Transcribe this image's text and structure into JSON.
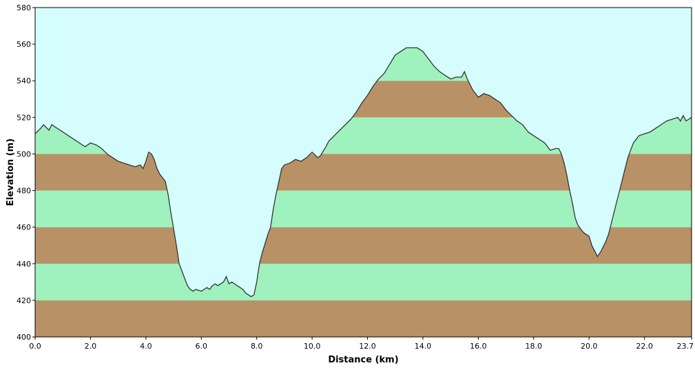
{
  "chart_data": {
    "type": "area",
    "xlabel": "Distance   (km)",
    "ylabel": "Elevation (m)",
    "xlim": [
      0,
      23.7
    ],
    "ylim": [
      400,
      580
    ],
    "x_ticks": [
      0,
      2,
      4,
      6,
      8,
      10,
      12,
      14,
      16,
      18,
      20,
      22,
      23.7
    ],
    "x_tick_labels": [
      "0.0",
      "2.0",
      "4.0",
      "6.0",
      "8.0",
      "10.0",
      "12.0",
      "14.0",
      "16.0",
      "18.0",
      "20.0",
      "22.0",
      "23.7"
    ],
    "y_ticks": [
      400,
      420,
      440,
      460,
      480,
      500,
      520,
      540,
      560,
      580
    ],
    "y_tick_labels": [
      "400",
      "420",
      "440",
      "460",
      "480",
      "500",
      "520",
      "540",
      "560",
      "580"
    ],
    "band_step": 20,
    "grid": false,
    "colors": {
      "sky": "#d6fdfd",
      "band_brown": "#b89266",
      "band_green": "#9ff2bd",
      "profile_line": "#333333",
      "axis": "#000000"
    },
    "x": [
      0,
      0.2,
      0.3,
      0.5,
      0.6,
      0.8,
      1.0,
      1.2,
      1.4,
      1.6,
      1.8,
      2.0,
      2.2,
      2.4,
      2.6,
      2.8,
      3.0,
      3.2,
      3.4,
      3.6,
      3.8,
      3.9,
      4.0,
      4.1,
      4.2,
      4.3,
      4.4,
      4.5,
      4.6,
      4.7,
      4.8,
      4.9,
      5.0,
      5.1,
      5.2,
      5.3,
      5.4,
      5.5,
      5.6,
      5.7,
      5.8,
      6.0,
      6.1,
      6.2,
      6.3,
      6.4,
      6.5,
      6.6,
      6.8,
      6.9,
      7.0,
      7.1,
      7.2,
      7.4,
      7.5,
      7.6,
      7.7,
      7.8,
      7.9,
      8.0,
      8.1,
      8.2,
      8.3,
      8.4,
      8.5,
      8.6,
      8.7,
      8.8,
      8.9,
      9.0,
      9.2,
      9.4,
      9.6,
      9.8,
      10.0,
      10.2,
      10.3,
      10.5,
      10.6,
      10.8,
      11.0,
      11.2,
      11.4,
      11.6,
      11.8,
      12.0,
      12.2,
      12.4,
      12.6,
      12.8,
      13.0,
      13.2,
      13.4,
      13.6,
      13.8,
      14.0,
      14.2,
      14.4,
      14.6,
      14.8,
      15.0,
      15.2,
      15.4,
      15.5,
      15.6,
      15.7,
      15.8,
      16.0,
      16.2,
      16.4,
      16.6,
      16.8,
      17.0,
      17.2,
      17.4,
      17.6,
      17.8,
      18.0,
      18.2,
      18.4,
      18.6,
      18.8,
      18.9,
      19.0,
      19.1,
      19.2,
      19.3,
      19.4,
      19.5,
      19.6,
      19.8,
      20.0,
      20.1,
      20.2,
      20.3,
      20.4,
      20.5,
      20.6,
      20.7,
      20.8,
      20.9,
      21.0,
      21.1,
      21.2,
      21.3,
      21.4,
      21.5,
      21.6,
      21.7,
      21.8,
      22.0,
      22.2,
      22.4,
      22.6,
      22.8,
      23.0,
      23.2,
      23.3,
      23.4,
      23.5,
      23.6,
      23.7
    ],
    "elevation": [
      511,
      514,
      516,
      513,
      516,
      514,
      512,
      510,
      508,
      506,
      504,
      506,
      505,
      503,
      500,
      498,
      496,
      495,
      494,
      493,
      494,
      492,
      496,
      501,
      500,
      497,
      492,
      489,
      487,
      485,
      478,
      468,
      459,
      450,
      440,
      436,
      432,
      428,
      426,
      425,
      426,
      425,
      426,
      427,
      426,
      428,
      429,
      428,
      430,
      433,
      429,
      430,
      429,
      427,
      426,
      424,
      423,
      422,
      423,
      430,
      440,
      446,
      451,
      456,
      460,
      470,
      478,
      485,
      492,
      494,
      495,
      497,
      496,
      498,
      501,
      498,
      499,
      504,
      507,
      510,
      513,
      516,
      519,
      523,
      528,
      532,
      537,
      541,
      544,
      549,
      554,
      556,
      558,
      558,
      558,
      556,
      552,
      548,
      545,
      543,
      541,
      542,
      542,
      545,
      541,
      538,
      535,
      531,
      533,
      532,
      530,
      528,
      524,
      521,
      518,
      516,
      512,
      510,
      508,
      506,
      502,
      503,
      503,
      500,
      495,
      488,
      480,
      473,
      465,
      461,
      457,
      455,
      450,
      447,
      444,
      446,
      449,
      452,
      456,
      462,
      468,
      474,
      480,
      486,
      492,
      498,
      502,
      506,
      508,
      510,
      511,
      512,
      514,
      516,
      518,
      519,
      520,
      518,
      521,
      518,
      519,
      520
    ]
  }
}
